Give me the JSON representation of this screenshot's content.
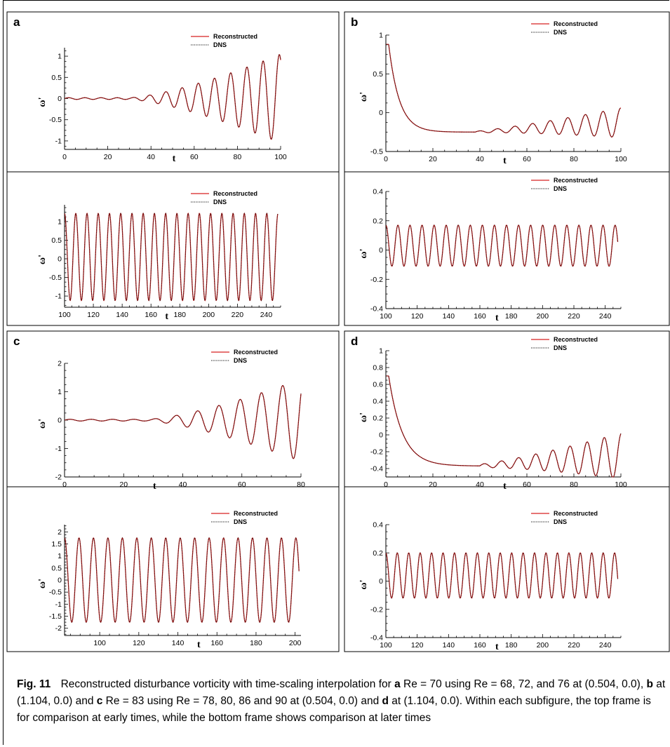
{
  "figure": {
    "caption": {
      "label": "Fig. 11",
      "segments": [
        {
          "text": "Reconstructed disturbance vorticity with time-scaling interpolation for ",
          "bold": false
        },
        {
          "text": "a",
          "bold": true
        },
        {
          "text": " Re = 70 using Re = 68, 72, and 76 at (0.504, 0.0), ",
          "bold": false
        },
        {
          "text": "b",
          "bold": true
        },
        {
          "text": " at (1.104, 0.0) and ",
          "bold": false
        },
        {
          "text": "c",
          "bold": true
        },
        {
          "text": " Re = 83 using Re = 78, 80, 86 and 90 at (0.504, 0.0) and ",
          "bold": false
        },
        {
          "text": "d",
          "bold": true
        },
        {
          "text": " at (1.104, 0.0). Within each subfigure, the top frame is for comparison at early times, while the bottom frame shows comparison at later times",
          "bold": false
        }
      ]
    },
    "colors": {
      "reconstructed": "#d62020",
      "dns": "#111111"
    }
  },
  "chart_data": [
    {
      "panel": "a",
      "frame": "top",
      "type": "line",
      "xlabel": "t",
      "ylabel": "ω'",
      "xlim": [
        0,
        100
      ],
      "ylim": [
        -1.2,
        1.2
      ],
      "xticks": [
        0,
        20,
        40,
        60,
        80,
        100
      ],
      "yticks": [
        -1,
        -0.5,
        0,
        0.5,
        1
      ],
      "legend": [
        "Reconstructed",
        "DNS"
      ],
      "legend_position": "top-right",
      "series": [
        {
          "name": "Reconstructed",
          "kind": "growing-oscillation",
          "t0": 0,
          "t1": 100,
          "mean": 0,
          "period": 7.5,
          "onset": 30,
          "amp_start": 0.02,
          "amp_end": 1.05,
          "samples": [
            [
              0,
              0
            ],
            [
              20,
              0.01
            ],
            [
              40,
              -0.04
            ],
            [
              60,
              0.2
            ],
            [
              80,
              0.75
            ],
            [
              95,
              1.0
            ],
            [
              100,
              -0.7
            ]
          ]
        },
        {
          "name": "DNS",
          "kind": "growing-oscillation",
          "t0": 0,
          "t1": 100,
          "mean": 0,
          "period": 7.5,
          "onset": 30,
          "amp_start": 0.02,
          "amp_end": 1.05,
          "samples": [
            [
              0,
              0
            ],
            [
              20,
              0.01
            ],
            [
              40,
              -0.04
            ],
            [
              60,
              0.2
            ],
            [
              80,
              0.75
            ],
            [
              95,
              1.0
            ],
            [
              100,
              -0.7
            ]
          ]
        }
      ]
    },
    {
      "panel": "a",
      "frame": "bottom",
      "type": "line",
      "xlabel": "t",
      "ylabel": "ω'",
      "xlim": [
        100,
        250
      ],
      "ylim": [
        -1.3,
        1.45
      ],
      "xticks": [
        100,
        120,
        140,
        160,
        180,
        200,
        220,
        240
      ],
      "yticks": [
        -1,
        -0.5,
        0,
        0.5,
        1
      ],
      "legend": [
        "Reconstructed",
        "DNS"
      ],
      "legend_position": "top-right",
      "series": [
        {
          "name": "Reconstructed",
          "kind": "oscillation",
          "t0": 100,
          "t1": 248,
          "mean": 0.05,
          "period": 7.8,
          "amplitude": 1.17,
          "samples": [
            [
              100,
              -0.9
            ],
            [
              103.9,
              1.22
            ],
            [
              107.8,
              -1.12
            ],
            [
              200,
              1.22
            ],
            [
              248,
              -1.0
            ]
          ]
        },
        {
          "name": "DNS",
          "kind": "oscillation",
          "t0": 100,
          "t1": 248,
          "mean": 0.05,
          "period": 7.8,
          "amplitude": 1.17,
          "samples": [
            [
              100,
              -0.9
            ],
            [
              103.9,
              1.22
            ],
            [
              107.8,
              -1.12
            ],
            [
              200,
              1.22
            ],
            [
              248,
              -1.0
            ]
          ]
        }
      ]
    },
    {
      "panel": "b",
      "frame": "top",
      "type": "line",
      "xlabel": "t",
      "ylabel": "ω'",
      "xlim": [
        0,
        100
      ],
      "ylim": [
        -0.5,
        1.0
      ],
      "xticks": [
        0,
        20,
        40,
        60,
        80,
        100
      ],
      "yticks": [
        -0.5,
        0,
        0.5,
        1
      ],
      "legend": [
        "Reconstructed",
        "DNS"
      ],
      "legend_position": "top-right",
      "series": [
        {
          "name": "Reconstructed",
          "kind": "decay-then-oscillation",
          "t0": 0,
          "t1": 100,
          "start": 0.88,
          "settle": -0.25,
          "decay_rate": 0.22,
          "period": 7.5,
          "onset": 38,
          "amp_start": 0.01,
          "amp_end": 0.19,
          "samples": [
            [
              0,
              0.88
            ],
            [
              10,
              -0.1
            ],
            [
              20,
              -0.2
            ],
            [
              40,
              -0.26
            ],
            [
              60,
              -0.22
            ],
            [
              80,
              -0.12
            ],
            [
              95,
              0.12
            ],
            [
              100,
              -0.01
            ]
          ]
        },
        {
          "name": "DNS",
          "kind": "decay-then-oscillation",
          "t0": 0,
          "t1": 100,
          "start": 0.88,
          "settle": -0.25,
          "decay_rate": 0.22,
          "period": 7.5,
          "onset": 38,
          "amp_start": 0.01,
          "amp_end": 0.19,
          "samples": [
            [
              0,
              0.88
            ],
            [
              10,
              -0.1
            ],
            [
              20,
              -0.2
            ],
            [
              40,
              -0.26
            ],
            [
              60,
              -0.22
            ],
            [
              80,
              -0.12
            ],
            [
              95,
              0.12
            ],
            [
              100,
              -0.01
            ]
          ]
        }
      ]
    },
    {
      "panel": "b",
      "frame": "bottom",
      "type": "line",
      "xlabel": "t",
      "ylabel": "ω'",
      "xlim": [
        100,
        250
      ],
      "ylim": [
        -0.4,
        0.4
      ],
      "xticks": [
        100,
        120,
        140,
        160,
        180,
        200,
        220,
        240
      ],
      "yticks": [
        -0.4,
        -0.2,
        0,
        0.2,
        0.4
      ],
      "legend": [
        "Reconstructed",
        "DNS"
      ],
      "legend_position": "top-right",
      "series": [
        {
          "name": "Reconstructed",
          "kind": "oscillation",
          "t0": 100,
          "t1": 248,
          "mean": 0.03,
          "period": 7.7,
          "amplitude": 0.14,
          "samples": [
            [
              100,
              -0.05
            ],
            [
              103.8,
              0.17
            ],
            [
              107.7,
              -0.11
            ],
            [
              200,
              0.17
            ],
            [
              248,
              -0.04
            ]
          ]
        },
        {
          "name": "DNS",
          "kind": "oscillation",
          "t0": 100,
          "t1": 248,
          "mean": 0.03,
          "period": 7.7,
          "amplitude": 0.14,
          "samples": [
            [
              100,
              -0.05
            ],
            [
              103.8,
              0.17
            ],
            [
              107.7,
              -0.11
            ],
            [
              200,
              0.17
            ],
            [
              248,
              -0.04
            ]
          ]
        }
      ]
    },
    {
      "panel": "c",
      "frame": "top",
      "type": "line",
      "xlabel": "t",
      "ylabel": "ω'",
      "xlim": [
        0,
        80
      ],
      "ylim": [
        -2,
        2
      ],
      "xticks": [
        0,
        20,
        40,
        60,
        80
      ],
      "yticks": [
        -2,
        -1,
        0,
        1,
        2
      ],
      "legend": [
        "Reconstructed",
        "DNS"
      ],
      "legend_position": "top-right",
      "series": [
        {
          "name": "Reconstructed",
          "kind": "growing-oscillation",
          "t0": 0,
          "t1": 80,
          "mean": 0,
          "period": 7.2,
          "onset": 28,
          "amp_start": 0.03,
          "amp_end": 1.45,
          "samples": [
            [
              0,
              0
            ],
            [
              20,
              0.01
            ],
            [
              40,
              -0.15
            ],
            [
              60,
              0.45
            ],
            [
              72,
              1.25
            ],
            [
              79,
              1.45
            ],
            [
              80,
              1.1
            ]
          ]
        },
        {
          "name": "DNS",
          "kind": "growing-oscillation",
          "t0": 0,
          "t1": 80,
          "mean": 0,
          "period": 7.2,
          "onset": 28,
          "amp_start": 0.03,
          "amp_end": 1.45,
          "samples": [
            [
              0,
              0
            ],
            [
              20,
              0.01
            ],
            [
              40,
              -0.15
            ],
            [
              60,
              0.45
            ],
            [
              72,
              1.25
            ],
            [
              79,
              1.45
            ],
            [
              80,
              1.1
            ]
          ]
        }
      ]
    },
    {
      "panel": "c",
      "frame": "bottom",
      "type": "line",
      "xlabel": "t",
      "ylabel": "ω'",
      "xlim": [
        82,
        203
      ],
      "ylim": [
        -2.3,
        2.3
      ],
      "xticks": [
        100,
        120,
        140,
        160,
        180,
        200
      ],
      "yticks": [
        -2,
        -1.5,
        -1,
        -0.5,
        0,
        0.5,
        1,
        1.5,
        2
      ],
      "legend": [
        "Reconstructed",
        "DNS"
      ],
      "legend_position": "top-right",
      "series": [
        {
          "name": "Reconstructed",
          "kind": "oscillation",
          "t0": 82,
          "t1": 202,
          "mean": 0,
          "period": 7.4,
          "amplitude": 1.75,
          "samples": [
            [
              82,
              -1.5
            ],
            [
              86,
              1.65
            ],
            [
              89.7,
              -1.75
            ],
            [
              200,
              1.75
            ],
            [
              202,
              0
            ]
          ]
        },
        {
          "name": "DNS",
          "kind": "oscillation",
          "t0": 82,
          "t1": 202,
          "mean": 0,
          "period": 7.4,
          "amplitude": 1.75,
          "samples": [
            [
              82,
              -1.5
            ],
            [
              86,
              1.65
            ],
            [
              89.7,
              -1.75
            ],
            [
              200,
              1.75
            ],
            [
              202,
              0
            ]
          ]
        }
      ]
    },
    {
      "panel": "d",
      "frame": "top",
      "type": "line",
      "xlabel": "t",
      "ylabel": "ω'",
      "xlim": [
        0,
        100
      ],
      "ylim": [
        -0.5,
        1.0
      ],
      "xticks": [
        0,
        20,
        40,
        60,
        80,
        100
      ],
      "yticks": [
        -0.4,
        -0.2,
        0,
        0.2,
        0.4,
        0.6,
        0.8,
        1
      ],
      "legend": [
        "Reconstructed",
        "DNS"
      ],
      "legend_position": "top-right",
      "series": [
        {
          "name": "Reconstructed",
          "kind": "decay-then-oscillation",
          "t0": 0,
          "t1": 100,
          "start": 0.7,
          "settle": -0.37,
          "decay_rate": 0.17,
          "period": 7.3,
          "onset": 40,
          "amp_start": 0.02,
          "amp_end": 0.27,
          "samples": [
            [
              0,
              0.7
            ],
            [
              10,
              -0.05
            ],
            [
              20,
              -0.28
            ],
            [
              40,
              -0.38
            ],
            [
              60,
              -0.3
            ],
            [
              80,
              -0.05
            ],
            [
              98,
              0.19
            ],
            [
              100,
              0.1
            ]
          ]
        },
        {
          "name": "DNS",
          "kind": "decay-then-oscillation",
          "t0": 0,
          "t1": 100,
          "start": 0.7,
          "settle": -0.37,
          "decay_rate": 0.17,
          "period": 7.3,
          "onset": 40,
          "amp_start": 0.02,
          "amp_end": 0.27,
          "samples": [
            [
              0,
              0.7
            ],
            [
              10,
              -0.05
            ],
            [
              20,
              -0.28
            ],
            [
              40,
              -0.38
            ],
            [
              60,
              -0.3
            ],
            [
              80,
              -0.05
            ],
            [
              98,
              0.19
            ],
            [
              100,
              0.1
            ]
          ]
        }
      ]
    },
    {
      "panel": "d",
      "frame": "bottom",
      "type": "line",
      "xlabel": "t",
      "ylabel": "ω'",
      "xlim": [
        100,
        250
      ],
      "ylim": [
        -0.4,
        0.4
      ],
      "xticks": [
        100,
        120,
        140,
        160,
        180,
        200,
        220,
        240
      ],
      "yticks": [
        -0.4,
        -0.2,
        0,
        0.2,
        0.4
      ],
      "legend": [
        "Reconstructed",
        "DNS"
      ],
      "legend_position": "top-right",
      "series": [
        {
          "name": "Reconstructed",
          "kind": "oscillation",
          "t0": 100,
          "t1": 248,
          "mean": 0.04,
          "period": 7.3,
          "amplitude": 0.16,
          "samples": [
            [
              100,
              -0.1
            ],
            [
              103.7,
              0.2
            ],
            [
              107.3,
              -0.12
            ],
            [
              200,
              0.2
            ],
            [
              248,
              0.2
            ]
          ]
        },
        {
          "name": "DNS",
          "kind": "oscillation",
          "t0": 100,
          "t1": 248,
          "mean": 0.04,
          "period": 7.3,
          "amplitude": 0.16,
          "samples": [
            [
              100,
              -0.1
            ],
            [
              103.7,
              0.2
            ],
            [
              107.3,
              -0.12
            ],
            [
              200,
              0.2
            ],
            [
              248,
              0.2
            ]
          ]
        }
      ]
    }
  ]
}
